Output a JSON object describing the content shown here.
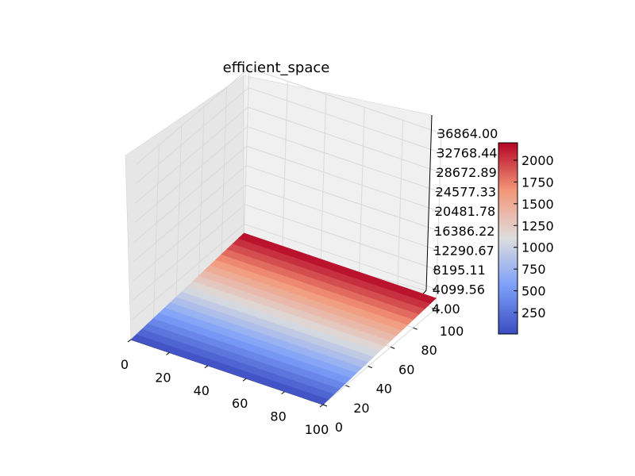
{
  "chart_data": {
    "type": "surface3d",
    "title": "efficient_space",
    "xlabel": "",
    "ylabel": "",
    "zlabel": "",
    "x_ticks": [
      "0",
      "20",
      "40",
      "60",
      "80",
      "100"
    ],
    "y_ticks": [
      "0",
      "20",
      "40",
      "60",
      "80",
      "100"
    ],
    "z_ticks": [
      "4.00",
      "4099.56",
      "8195.11",
      "12290.67",
      "16386.22",
      "20481.78",
      "24577.33",
      "28672.89",
      "32768.44",
      "36864.00"
    ],
    "xlim": [
      0,
      100
    ],
    "ylim": [
      0,
      100
    ],
    "zlim": [
      4.0,
      36864.0
    ],
    "surface": {
      "description_values": "value increases linearly with y, constant along x",
      "value_at_y_min": 4,
      "value_at_y_max": 2200,
      "bands": 20
    },
    "colorbar": {
      "colormap": "coolwarm",
      "ticks": [
        "250",
        "500",
        "750",
        "1000",
        "1250",
        "1500",
        "1750",
        "2000"
      ],
      "min": 4,
      "max": 2200
    },
    "grid": true,
    "colors": {
      "pane": "#f0f0f0",
      "grid": "#e4e4e4",
      "low": "#3b4cc0",
      "mid": "#dddddd",
      "high": "#b40426"
    }
  }
}
